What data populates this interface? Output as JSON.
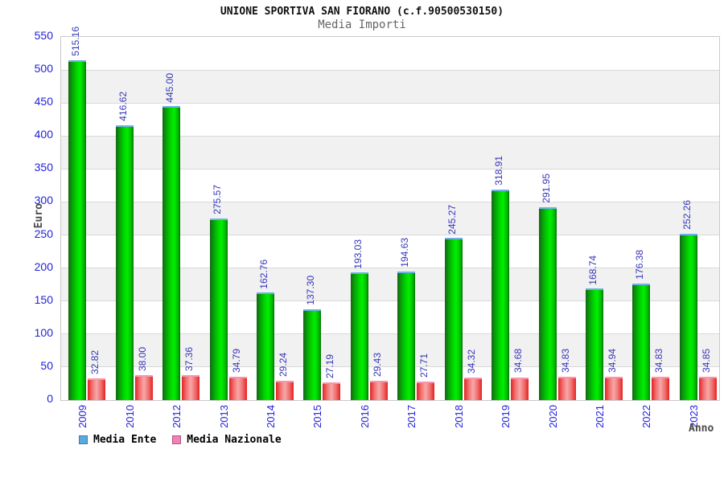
{
  "title": "UNIONE SPORTIVA SAN FIORANO (c.f.90500530150)",
  "subtitle": "Media Importi",
  "y_axis_title": "Euro",
  "x_axis_title": "Anno",
  "legend": {
    "items": [
      {
        "label": "Media Ente",
        "swatch_fill": "#5aabdc",
        "swatch_border": "#3a7ab8"
      },
      {
        "label": "Media Nazionale",
        "swatch_fill": "#ef82b4",
        "swatch_border": "#b85480"
      }
    ]
  },
  "colors": {
    "tick_label_blue": "#2222dd",
    "value_label_blue": "#3434b8",
    "band_gray": "#f1f1f1",
    "green_bar_mid": "#00ef00",
    "green_bar_edge": "#156515",
    "green_bar_cap": "#6fb0e6",
    "red_bar_mid": "#f8a8a8",
    "red_bar_edge": "#e42222",
    "red_bar_cap": "#fb93ac"
  },
  "chart_data": {
    "type": "bar",
    "title": "Media Importi",
    "suptitle": "UNIONE SPORTIVA SAN FIORANO (c.f.90500530150)",
    "xlabel": "Anno",
    "ylabel": "Euro",
    "ylim": [
      0,
      550
    ],
    "ytick_step": 50,
    "grid": "horizontal",
    "legend_position": "bottom-left",
    "categories": [
      "2009",
      "2010",
      "2012",
      "2013",
      "2014",
      "2015",
      "2016",
      "2017",
      "2018",
      "2019",
      "2020",
      "2021",
      "2022",
      "2023"
    ],
    "series": [
      {
        "name": "Media Ente",
        "values": [
          515.16,
          416.62,
          445.0,
          275.57,
          162.76,
          137.3,
          193.03,
          194.63,
          245.27,
          318.91,
          291.95,
          168.74,
          176.38,
          252.26
        ],
        "labels": [
          "515.16",
          "416.62",
          "445.00",
          "275.57",
          "162.76",
          "137.30",
          "193.03",
          "194.63",
          "245.27",
          "318.91",
          "291.95",
          "168.74",
          "176.38",
          "252.26"
        ]
      },
      {
        "name": "Media Nazionale",
        "values": [
          32.82,
          38.0,
          37.36,
          34.79,
          29.24,
          27.19,
          29.43,
          27.71,
          34.32,
          34.68,
          34.83,
          34.94,
          34.83,
          34.85
        ],
        "labels": [
          "32.82",
          "38.00",
          "37.36",
          "34.79",
          "29.24",
          "27.19",
          "29.43",
          "27.71",
          "34.32",
          "34.68",
          "34.83",
          "34.94",
          "34.83",
          "34.85"
        ]
      }
    ]
  }
}
